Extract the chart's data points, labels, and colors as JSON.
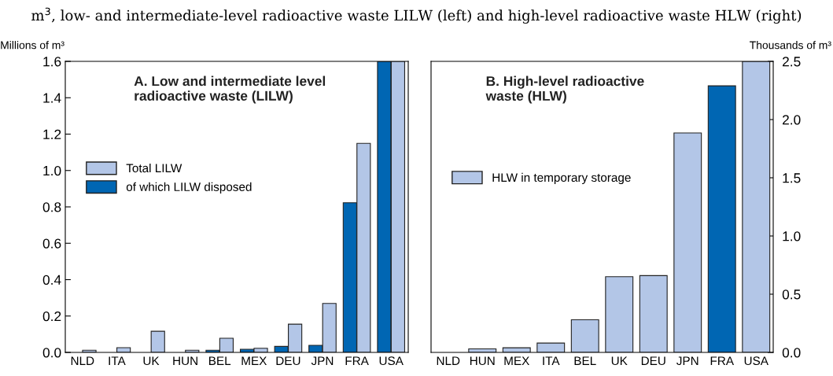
{
  "chart_data": [
    {
      "type": "bar",
      "subtitle": "m$^{3}$, low- and intermediate-level radioactive waste LILW (left) and high-level radioactive waste HLW (right)",
      "title": "A. Low and intermediate level\nradioactive waste (LILW)",
      "ylabel": "Millions of m³",
      "categories": [
        "NLD",
        "ITA",
        "UK",
        "HUN",
        "BEL",
        "MEX",
        "DEU",
        "JPN",
        "FRA",
        "USA"
      ],
      "series": [
        {
          "name": "of which LILW disposed",
          "color": "#0066b3",
          "values": [
            null,
            null,
            null,
            null,
            0.012,
            0.017,
            0.033,
            0.039,
            0.823,
            1.6
          ]
        },
        {
          "name": "Total LILW",
          "color": "#b3c6e7",
          "values": [
            0.012,
            0.026,
            0.116,
            0.012,
            0.078,
            0.023,
            0.155,
            0.269,
            1.149,
            1.6
          ]
        }
      ],
      "ylim": [
        0,
        1.6
      ],
      "yticks": [
        {
          "value": 0,
          "label": "0.0"
        },
        0.2,
        0.4,
        0.6,
        0.8,
        {
          "value": 1,
          "label": "1.0"
        },
        1.2,
        1.4,
        1.6
      ],
      "legend": "center left",
      "grid": false
    },
    {
      "type": "bar",
      "title": "B. High-level radioactive\nwaste (HLW)",
      "y2label": "Thousands of m³",
      "categories": [
        "NLD",
        "HUN",
        "MEX",
        "ITA",
        "BEL",
        "UK",
        "DEU",
        "JPN",
        "FRA",
        "USA"
      ],
      "series": [
        {
          "name": "HLW in temporary storage",
          "color": "#b3c6e7",
          "axis": "y2",
          "values": [
            null,
            0.03,
            0.04,
            0.08,
            0.28,
            0.65,
            0.66,
            1.885,
            2.29,
            2.5
          ],
          "colors": [
            "#b3c6e7",
            "#b3c6e7",
            "#b3c6e7",
            "#b3c6e7",
            "#b3c6e7",
            "#b3c6e7",
            "#b3c6e7",
            "#b3c6e7",
            "#0066b3",
            "#b3c6e7"
          ]
        }
      ],
      "y2lim": [
        0,
        2.5
      ],
      "y2ticks": [
        {
          "value": 0,
          "label": "0.0"
        },
        0.5,
        {
          "value": 1,
          "label": "1.0"
        },
        1.5,
        {
          "value": 2,
          "label": "2.0"
        },
        2.5
      ],
      "legend": "center left",
      "grid": false
    }
  ]
}
